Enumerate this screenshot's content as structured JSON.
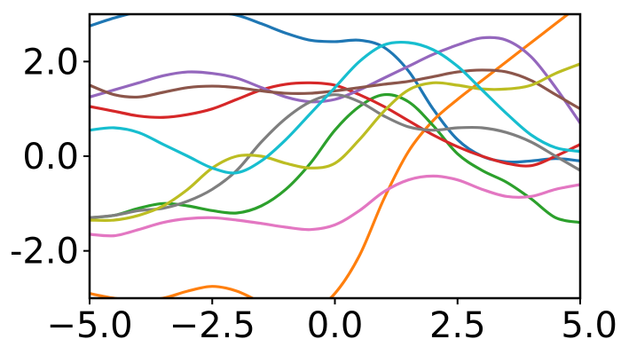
{
  "chart_data": {
    "type": "line",
    "title": "",
    "xlabel": "",
    "ylabel": "",
    "xlim": [
      -5,
      5
    ],
    "ylim": [
      -3,
      3
    ],
    "grid": false,
    "legend": "none",
    "x_ticks": [
      {
        "value": -5,
        "label": "−5.0"
      },
      {
        "value": -2.5,
        "label": "−2.5"
      },
      {
        "value": 0,
        "label": "0.0"
      },
      {
        "value": 2.5,
        "label": "2.5"
      },
      {
        "value": 5,
        "label": "5.0"
      }
    ],
    "y_ticks": [
      {
        "value": -2,
        "label": "-2.0"
      },
      {
        "value": 0,
        "label": "0.0"
      },
      {
        "value": 2,
        "label": "2.0"
      }
    ],
    "x": [
      -5,
      -4.5,
      -4,
      -3.5,
      -3,
      -2.5,
      -2,
      -1.5,
      -1,
      -0.5,
      0,
      0.5,
      1,
      1.5,
      2,
      2.5,
      3,
      3.5,
      4,
      4.5,
      5
    ],
    "series": [
      {
        "color": "#1f77b4",
        "values": [
          2.75,
          2.92,
          3.05,
          3.1,
          3.1,
          3.05,
          2.98,
          2.8,
          2.6,
          2.45,
          2.42,
          2.45,
          2.3,
          1.8,
          1.0,
          0.35,
          0.0,
          -0.12,
          -0.1,
          -0.05,
          -0.1
        ]
      },
      {
        "color": "#ff7f0e",
        "values": [
          -2.9,
          -3.0,
          -3.05,
          -3.0,
          -2.85,
          -2.75,
          -2.85,
          -3.1,
          -3.4,
          -3.3,
          -2.9,
          -2.1,
          -0.9,
          0.1,
          0.75,
          1.2,
          1.6,
          2.0,
          2.4,
          2.8,
          3.2
        ]
      },
      {
        "color": "#2ca02c",
        "values": [
          -1.3,
          -1.25,
          -1.1,
          -1.0,
          -1.05,
          -1.15,
          -1.2,
          -1.05,
          -0.7,
          -0.15,
          0.55,
          1.05,
          1.3,
          1.15,
          0.65,
          0.05,
          -0.3,
          -0.55,
          -0.9,
          -1.3,
          -1.4
        ]
      },
      {
        "color": "#d62728",
        "values": [
          1.05,
          0.95,
          0.85,
          0.82,
          0.88,
          1.0,
          1.2,
          1.4,
          1.52,
          1.55,
          1.5,
          1.3,
          1.05,
          0.75,
          0.45,
          0.2,
          0.0,
          -0.15,
          -0.2,
          0.0,
          0.25
        ]
      },
      {
        "color": "#9467bd",
        "values": [
          1.25,
          1.4,
          1.55,
          1.7,
          1.78,
          1.75,
          1.65,
          1.45,
          1.25,
          1.15,
          1.2,
          1.4,
          1.65,
          1.9,
          2.15,
          2.35,
          2.5,
          2.45,
          2.1,
          1.45,
          0.7
        ]
      },
      {
        "color": "#8c564b",
        "values": [
          1.5,
          1.3,
          1.25,
          1.35,
          1.45,
          1.48,
          1.45,
          1.38,
          1.33,
          1.33,
          1.38,
          1.45,
          1.52,
          1.58,
          1.68,
          1.78,
          1.82,
          1.78,
          1.6,
          1.3,
          1.0
        ]
      },
      {
        "color": "#e377c2",
        "values": [
          -1.65,
          -1.68,
          -1.55,
          -1.4,
          -1.32,
          -1.3,
          -1.35,
          -1.42,
          -1.5,
          -1.55,
          -1.45,
          -1.15,
          -0.75,
          -0.5,
          -0.42,
          -0.5,
          -0.7,
          -0.85,
          -0.85,
          -0.7,
          -0.6
        ]
      },
      {
        "color": "#7f7f7f",
        "values": [
          -1.3,
          -1.25,
          -1.15,
          -1.1,
          -0.95,
          -0.7,
          -0.3,
          0.3,
          0.8,
          1.15,
          1.3,
          1.15,
          0.85,
          0.62,
          0.55,
          0.6,
          0.6,
          0.5,
          0.3,
          0.0,
          -0.3
        ]
      },
      {
        "color": "#bcbd22",
        "values": [
          -1.35,
          -1.35,
          -1.25,
          -1.05,
          -0.7,
          -0.25,
          0.0,
          0.0,
          -0.15,
          -0.25,
          -0.15,
          0.35,
          0.95,
          1.4,
          1.55,
          1.5,
          1.42,
          1.42,
          1.5,
          1.75,
          1.95
        ]
      },
      {
        "color": "#17becf",
        "values": [
          0.55,
          0.6,
          0.5,
          0.25,
          0.0,
          -0.25,
          -0.35,
          -0.1,
          0.35,
          0.9,
          1.45,
          2.0,
          2.35,
          2.4,
          2.25,
          1.9,
          1.4,
          0.9,
          0.45,
          0.18,
          0.1
        ]
      }
    ]
  }
}
